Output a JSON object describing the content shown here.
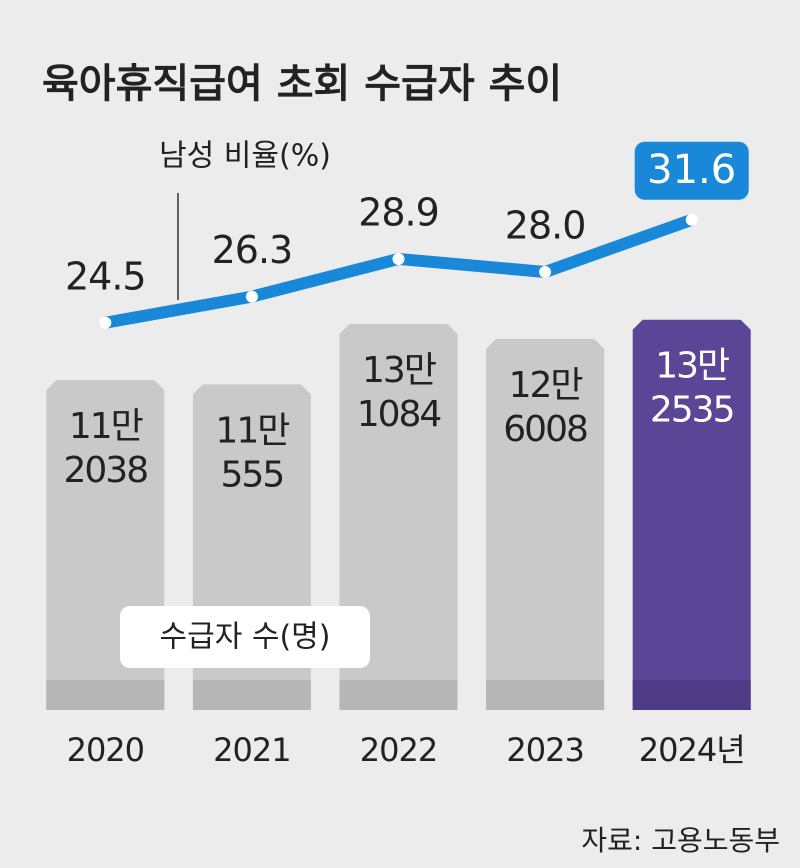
{
  "chart_data": {
    "type": "bar",
    "title": "육아휴직급여 초회 수급자 추이",
    "source": "자료: 고용노동부",
    "categories": [
      "2020",
      "2021",
      "2022",
      "2023",
      "2024년"
    ],
    "ylim": [
      0,
      145000
    ],
    "y2lim": [
      20,
      40
    ],
    "series": [
      {
        "name": "수급자 수(명)",
        "type": "bar",
        "colors": [
          "#c9c9c9",
          "#c9c9c9",
          "#c9c9c9",
          "#c9c9c9",
          "#5a4596"
        ],
        "values": [
          112038,
          110555,
          131084,
          126008,
          132535
        ],
        "value_labels": [
          [
            "11만",
            "2038"
          ],
          [
            "11만",
            "555"
          ],
          [
            "13만",
            "1084"
          ],
          [
            "12만",
            "6008"
          ],
          [
            "13만",
            "2535"
          ]
        ]
      },
      {
        "name": "남성 비율(%)",
        "type": "line",
        "axis": "y2",
        "color": "#1a88d8",
        "values": [
          24.5,
          26.3,
          28.9,
          28.0,
          31.6
        ],
        "value_labels": [
          "24.5",
          "26.3",
          "28.9",
          "28.0",
          "31.6"
        ]
      }
    ]
  }
}
